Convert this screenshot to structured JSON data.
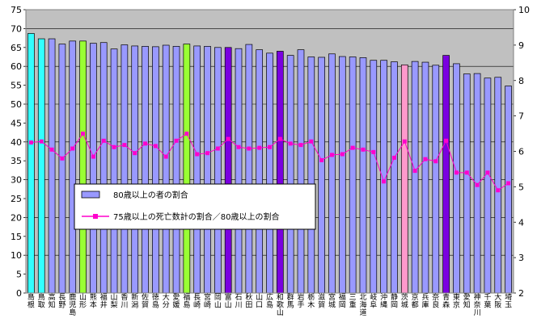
{
  "chart_data": {
    "type": "bar",
    "categories": [
      "島根",
      "鳥取",
      "高知",
      "長野",
      "鹿児島",
      "山形",
      "熊本",
      "福井",
      "山梨",
      "香川",
      "新潟",
      "佐賀",
      "徳島",
      "大分",
      "愛媛",
      "福島",
      "長崎",
      "宮崎",
      "岡山",
      "富山",
      "石川",
      "秋田",
      "山口",
      "広島",
      "和歌山",
      "群馬",
      "岩手",
      "栃木",
      "滋賀",
      "宮城",
      "福岡",
      "三重",
      "北海道",
      "岐阜",
      "沖縄",
      "静岡",
      "茨城",
      "京都",
      "兵庫",
      "奈良",
      "青森",
      "東京",
      "愛知",
      "神奈川",
      "千葉",
      "大阪",
      "埼玉"
    ],
    "ylim_left": [
      0,
      75
    ],
    "yticks_left": [
      0,
      5,
      10,
      15,
      20,
      25,
      30,
      35,
      40,
      45,
      50,
      55,
      60,
      65,
      70,
      75
    ],
    "ylim_right": [
      2,
      10
    ],
    "yticks_right": [
      2,
      3,
      4,
      5,
      6,
      7,
      8,
      9,
      10
    ],
    "series": [
      {
        "name": "80歳以上の者の割合",
        "axis": "left",
        "type": "bar",
        "values": [
          68.7,
          67.3,
          67.3,
          65.9,
          66.7,
          66.7,
          66.1,
          66.3,
          64.6,
          65.7,
          65.4,
          65.3,
          65.2,
          65.6,
          65.3,
          65.9,
          65.4,
          65.3,
          65.0,
          65.0,
          64.7,
          65.8,
          64.4,
          63.5,
          64.0,
          62.9,
          64.4,
          62.5,
          62.4,
          63.3,
          62.6,
          62.5,
          62.3,
          61.6,
          61.6,
          61.2,
          60.4,
          61.3,
          61.1,
          60.3,
          62.9,
          60.7,
          58.0,
          58.1,
          56.9,
          57.1,
          54.8
        ]
      },
      {
        "name": "75歳以上の死亡数計の割合／80歳以上の割合",
        "axis": "right",
        "type": "line",
        "values": [
          6.25,
          6.28,
          6.05,
          5.8,
          6.08,
          6.5,
          5.85,
          6.3,
          6.12,
          6.18,
          5.95,
          6.22,
          6.15,
          5.85,
          6.3,
          6.5,
          5.92,
          5.95,
          6.08,
          6.35,
          6.12,
          6.08,
          6.1,
          6.12,
          6.35,
          6.22,
          6.18,
          6.28,
          5.75,
          5.9,
          5.92,
          6.1,
          6.05,
          5.98,
          5.15,
          5.82,
          6.28,
          5.45,
          5.78,
          5.72,
          6.3,
          5.4,
          5.4,
          5.05,
          5.4,
          4.9,
          5.1
        ]
      }
    ],
    "colors": {
      "bar_default": "#9999ff",
      "bar_cyan": "#33ffff",
      "bar_green": "#99ff33",
      "bar_purple": "#7a00e0",
      "bar_pink": "#ff99cc",
      "line": "#ff00cc",
      "plot_background": "#c0c0c0"
    },
    "highlight": {
      "鳥取": "bar_cyan",
      "島根": "bar_cyan",
      "山形": "bar_green",
      "福島": "bar_green",
      "富山": "bar_purple",
      "和歌山": "bar_purple",
      "青森": "bar_purple",
      "茨城": "bar_pink"
    },
    "legend_position": "bottom-left inside"
  }
}
